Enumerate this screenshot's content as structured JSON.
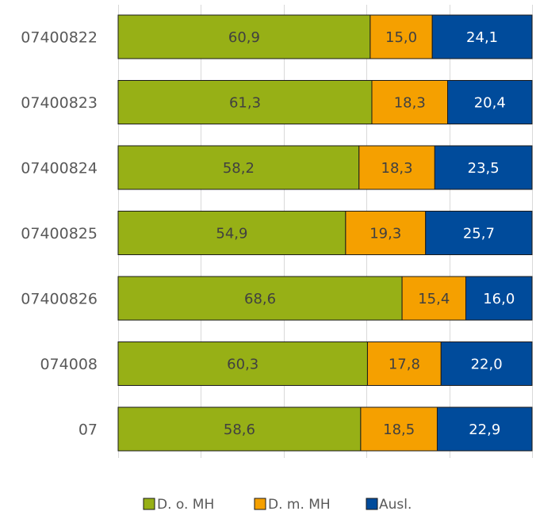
{
  "chart_data": {
    "type": "bar",
    "orientation": "horizontal",
    "stacked": true,
    "percent_stacked": true,
    "categories": [
      "07400822",
      "07400823",
      "07400824",
      "07400825",
      "07400826",
      "074008",
      "07"
    ],
    "series": [
      {
        "name": "D. o. MH",
        "color": "#97B016",
        "label_color": "#404040",
        "values": [
          60.9,
          61.3,
          58.2,
          54.9,
          68.6,
          60.3,
          58.6
        ]
      },
      {
        "name": "D. m. MH",
        "color": "#F5A000",
        "label_color": "#404040",
        "values": [
          15.0,
          18.3,
          18.3,
          19.3,
          15.4,
          17.8,
          18.5
        ]
      },
      {
        "name": "Ausl.",
        "color": "#004B9B",
        "label_color": "#ffffff",
        "values": [
          24.1,
          20.4,
          23.5,
          25.7,
          16.0,
          22.0,
          22.9
        ]
      }
    ],
    "value_labels": [
      [
        "60,9",
        "15,0",
        "24,1"
      ],
      [
        "61,3",
        "18,3",
        "20,4"
      ],
      [
        "58,2",
        "18,3",
        "23,5"
      ],
      [
        "54,9",
        "19,3",
        "25,7"
      ],
      [
        "68,6",
        "15,4",
        "16,0"
      ],
      [
        "60,3",
        "17,8",
        "22,0"
      ],
      [
        "58,6",
        "18,5",
        "22,9"
      ]
    ],
    "xlim": [
      0,
      100
    ],
    "grid": true,
    "legend_position": "bottom",
    "title": "",
    "xlabel": "",
    "ylabel": ""
  }
}
